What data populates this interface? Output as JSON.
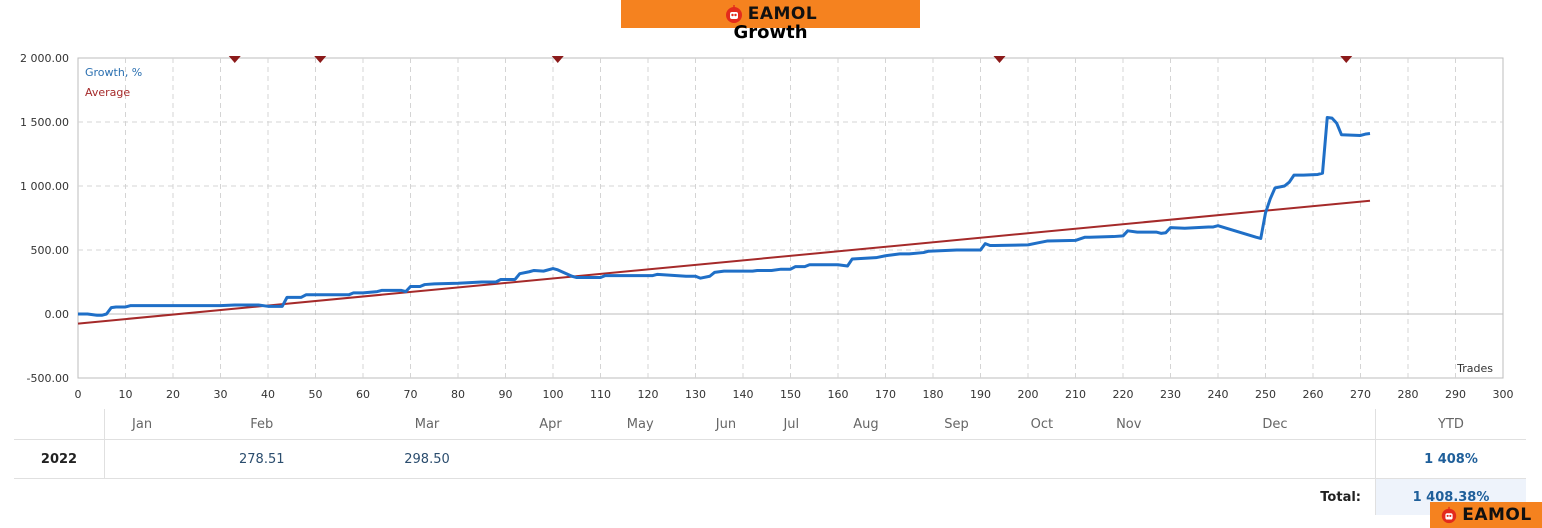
{
  "brand": {
    "name": "EAMOL",
    "logo_color": "#f5821f"
  },
  "chart_data": {
    "type": "line",
    "title": "Growth",
    "xlabel": "Trades",
    "ylabel": "",
    "xlim": [
      0,
      300
    ],
    "ylim": [
      -500,
      2000
    ],
    "xticks": [
      0,
      10,
      20,
      30,
      40,
      50,
      60,
      70,
      80,
      90,
      100,
      110,
      120,
      130,
      140,
      150,
      160,
      170,
      180,
      190,
      200,
      210,
      220,
      230,
      240,
      250,
      260,
      270,
      280,
      290,
      300
    ],
    "yticks": [
      {
        "value": -500,
        "label": "-500.00"
      },
      {
        "value": 0,
        "label": "0.00"
      },
      {
        "value": 500,
        "label": "500.00"
      },
      {
        "value": 1000,
        "label": "1 000.00"
      },
      {
        "value": 1500,
        "label": "1 500.00"
      },
      {
        "value": 2000,
        "label": "2 000.00"
      }
    ],
    "grid": true,
    "legend_position": "top-left",
    "month_markers_x": [
      33,
      51,
      101,
      194,
      267
    ],
    "series": [
      {
        "name": "Growth, %",
        "color": "#1f6fc7",
        "x": [
          0,
          2,
          4,
          5,
          6,
          7,
          8,
          10,
          11,
          12,
          20,
          30,
          33,
          38,
          40,
          43,
          44,
          47,
          48,
          52,
          57,
          58,
          60,
          63,
          64,
          68,
          69,
          70,
          72,
          73,
          75,
          80,
          85,
          88,
          89,
          92,
          93,
          95,
          96,
          98,
          100,
          101,
          104,
          105,
          110,
          111,
          116,
          121,
          122,
          128,
          130,
          131,
          133,
          134,
          136,
          142,
          143,
          146,
          148,
          150,
          151,
          153,
          154,
          160,
          162,
          163,
          168,
          170,
          171,
          173,
          175,
          178,
          179,
          185,
          190,
          191,
          192,
          193,
          200,
          202,
          204,
          210,
          212,
          213,
          218,
          220,
          221,
          223,
          224,
          227,
          228,
          229,
          230,
          233,
          238,
          239,
          240,
          248,
          249,
          250,
          251,
          252,
          254,
          255,
          256,
          258,
          261,
          262,
          263,
          264,
          265,
          266,
          270,
          271,
          272
        ],
        "values": [
          0,
          0,
          -10,
          -10,
          0,
          50,
          55,
          55,
          65,
          65,
          65,
          65,
          70,
          70,
          60,
          60,
          130,
          130,
          150,
          150,
          150,
          165,
          165,
          175,
          185,
          185,
          175,
          215,
          215,
          230,
          235,
          240,
          250,
          250,
          270,
          270,
          315,
          330,
          340,
          335,
          355,
          345,
          295,
          285,
          285,
          300,
          300,
          300,
          310,
          295,
          295,
          280,
          295,
          325,
          335,
          335,
          340,
          340,
          350,
          350,
          370,
          370,
          385,
          385,
          375,
          430,
          440,
          455,
          460,
          470,
          470,
          480,
          490,
          500,
          500,
          550,
          535,
          535,
          540,
          555,
          570,
          575,
          600,
          600,
          605,
          610,
          650,
          640,
          640,
          640,
          630,
          635,
          675,
          670,
          680,
          680,
          690,
          600,
          590,
          790,
          900,
          985,
          1000,
          1030,
          1085,
          1085,
          1090,
          1100,
          1535,
          1530,
          1490,
          1400,
          1395,
          1405,
          1410
        ]
      },
      {
        "name": "Average",
        "color": "#a52a2a",
        "x": [
          0,
          272
        ],
        "values": [
          -75,
          885
        ]
      }
    ]
  },
  "table": {
    "months": [
      "Jan",
      "Feb",
      "Mar",
      "Apr",
      "May",
      "Jun",
      "Jul",
      "Aug",
      "Sep",
      "Oct",
      "Nov",
      "Dec"
    ],
    "ytd_header": "YTD",
    "rows": [
      {
        "year": "2022",
        "values": [
          "",
          "278.51",
          "298.50",
          "",
          "",
          "",
          "",
          "",
          "",
          "",
          "",
          ""
        ],
        "ytd": "1 408%"
      }
    ],
    "total_label": "Total:",
    "total_value": "1 408.38%"
  }
}
